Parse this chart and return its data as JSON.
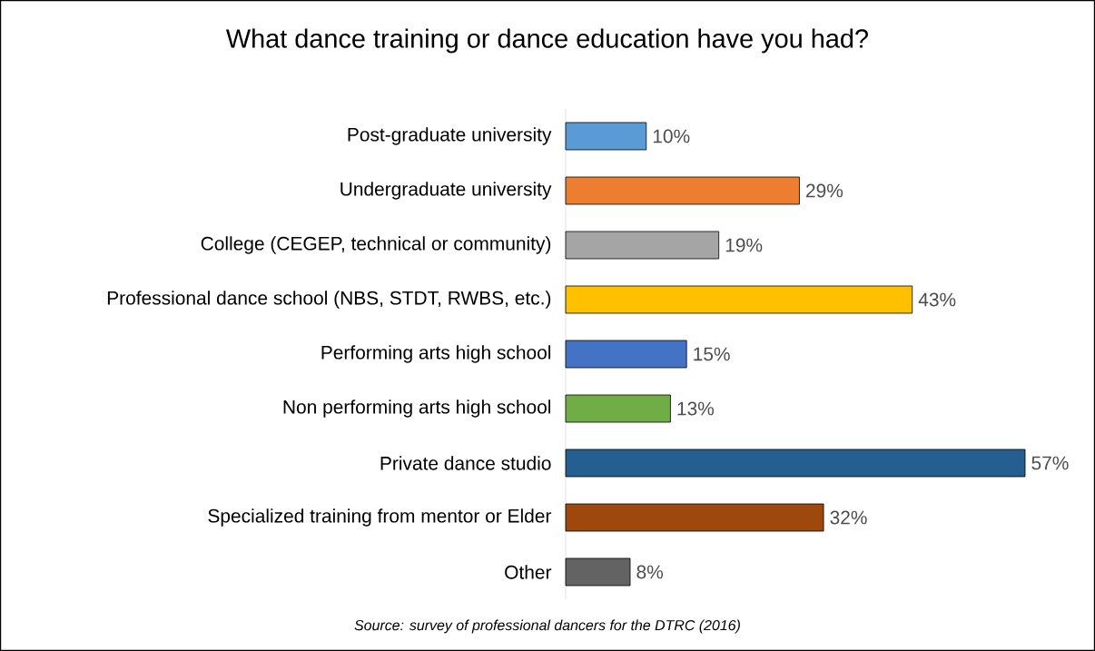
{
  "chart_data": {
    "type": "bar",
    "orientation": "horizontal",
    "title": "What dance training or dance education have you had?",
    "categories": [
      "Post-graduate university",
      "Undergraduate university",
      "College (CEGEP, technical or community)",
      "Professional dance school (NBS, STDT, RWBS, etc.)",
      "Performing arts high school",
      "Non performing arts high school",
      "Private dance studio",
      "Specialized training from mentor or Elder",
      "Other"
    ],
    "values": [
      10,
      29,
      19,
      43,
      15,
      13,
      57,
      32,
      8
    ],
    "value_labels": [
      "10%",
      "29%",
      "19%",
      "43%",
      "15%",
      "13%",
      "57%",
      "32%",
      "8%"
    ],
    "colors": [
      "#5b9bd5",
      "#ed7d31",
      "#a5a5a5",
      "#ffc000",
      "#4472c4",
      "#70ad47",
      "#255e91",
      "#9e480e",
      "#636363"
    ],
    "annotations": [
      "*Source: survey of professional dancers for the DTRC (2016)*"
    ]
  }
}
